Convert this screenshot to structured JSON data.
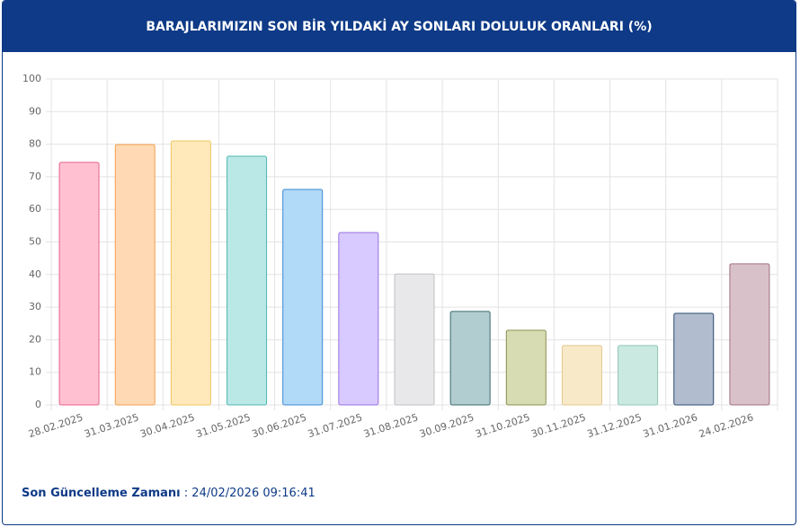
{
  "chart_data": {
    "type": "bar",
    "title": "BARAJLARIMIZIN SON BİR YILDAKİ AY SONLARI DOLULUK ORANLARI (%)",
    "categories": [
      "28.02.2025",
      "31.03.2025",
      "30.04.2025",
      "31.05.2025",
      "30.06.2025",
      "31.07.2025",
      "31.08.2025",
      "30.09.2025",
      "31.10.2025",
      "30.11.2025",
      "31.12.2025",
      "31.01.2026",
      "24.02.2026"
    ],
    "values": [
      74.4,
      79.9,
      81.0,
      76.3,
      66.1,
      52.9,
      40.2,
      28.7,
      22.9,
      18.2,
      18.2,
      28.1,
      43.3
    ],
    "colors": [
      "#ffc1d2",
      "#ffd9b3",
      "#ffe9bb",
      "#b9e8e7",
      "#b1d9f8",
      "#d8c9ff",
      "#e8e8ea",
      "#b2cdcf",
      "#d8dcb2",
      "#f8e9c8",
      "#c9e9e1",
      "#b1bdcf",
      "#d9c1c9"
    ],
    "border_colors": [
      "#e8608a",
      "#f0a050",
      "#f2c45e",
      "#4fb8b0",
      "#3a8ad0",
      "#9a70e0",
      "#c0c0c4",
      "#3a6a70",
      "#8a9050",
      "#e2c88e",
      "#8fc6b6",
      "#2a4a70",
      "#a07080"
    ],
    "ylim": [
      0,
      100
    ],
    "yticks": [
      0,
      10,
      20,
      30,
      40,
      50,
      60,
      70,
      80,
      90,
      100
    ],
    "grid": true
  },
  "footer": {
    "label": "Son Güncelleme Zamanı",
    "separator": ":",
    "value": "24/02/2026 09:16:41"
  }
}
